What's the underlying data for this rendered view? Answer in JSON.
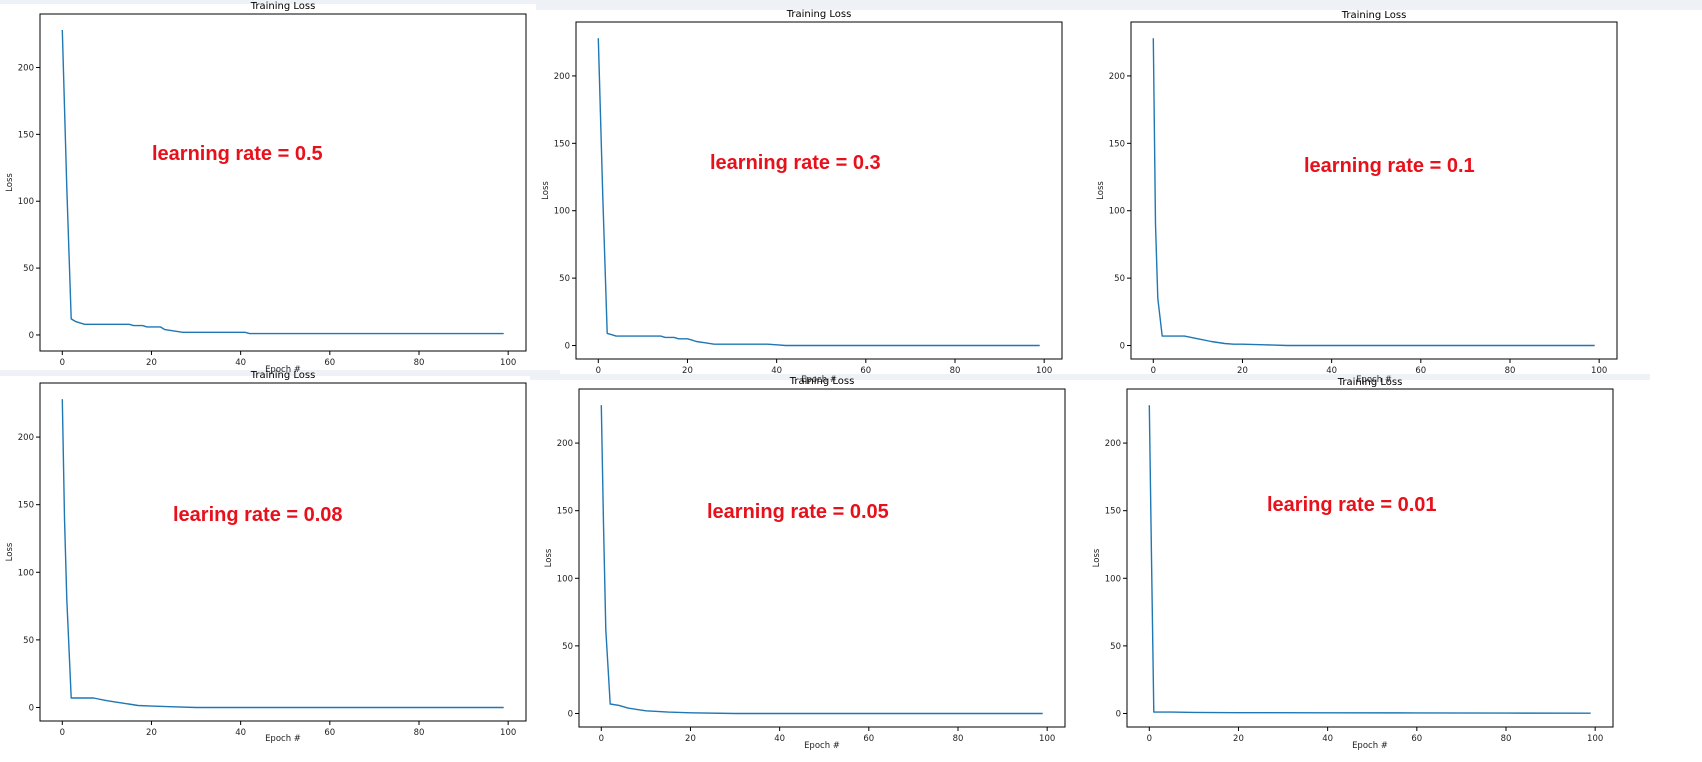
{
  "colors": {
    "line": "#1f77b4",
    "annotation": "#e8101a",
    "frame": "#000000",
    "strip": "#eef1f6"
  },
  "chart_data": [
    {
      "type": "line",
      "title": "Training Loss",
      "xlabel": "Epoch #",
      "ylabel": "Loss",
      "annotation": "learning rate = 0.5",
      "xlim": [
        -5,
        104
      ],
      "ylim": [
        -12,
        240
      ],
      "xticks": [
        0,
        20,
        40,
        60,
        80,
        100
      ],
      "yticks": [
        0,
        50,
        100,
        150,
        200
      ],
      "x": [
        0,
        1,
        2,
        3,
        4,
        5,
        8,
        12,
        15,
        16,
        18,
        19,
        22,
        23,
        25,
        27,
        30,
        35,
        41,
        42,
        45,
        50,
        60,
        70,
        80,
        90,
        99
      ],
      "y": [
        228,
        110,
        12,
        10,
        9,
        8,
        8,
        8,
        8,
        7,
        7,
        6,
        6,
        4,
        3,
        2,
        2,
        2,
        2,
        1,
        1,
        1,
        1,
        1,
        1,
        1,
        1
      ]
    },
    {
      "type": "line",
      "title": "Training Loss",
      "xlabel": "Epoch #",
      "ylabel": "Loss",
      "annotation": "learning rate = 0.3",
      "xlim": [
        -5,
        104
      ],
      "ylim": [
        -10,
        240
      ],
      "xticks": [
        0,
        20,
        40,
        60,
        80,
        100
      ],
      "yticks": [
        0,
        50,
        100,
        150,
        200
      ],
      "x": [
        0,
        1,
        2,
        3,
        4,
        6,
        10,
        14,
        15,
        17,
        18,
        20,
        21,
        22,
        24,
        26,
        30,
        35,
        38,
        40,
        42,
        45,
        50,
        60,
        70,
        80,
        90,
        99
      ],
      "y": [
        228,
        110,
        9,
        8,
        7,
        7,
        7,
        7,
        6,
        6,
        5,
        5,
        4,
        3,
        2,
        1,
        1,
        1,
        1,
        0.5,
        0,
        0,
        0,
        0,
        0,
        0,
        0,
        0
      ]
    },
    {
      "type": "line",
      "title": "Training Loss",
      "xlabel": "Epoch #",
      "ylabel": "Loss",
      "annotation": "learning rate = 0.1",
      "xlim": [
        -5,
        104
      ],
      "ylim": [
        -10,
        240
      ],
      "xticks": [
        0,
        20,
        40,
        60,
        80,
        100
      ],
      "yticks": [
        0,
        50,
        100,
        150,
        200
      ],
      "x": [
        0,
        0.5,
        1,
        2,
        3,
        5,
        7,
        10,
        13,
        16,
        18,
        20,
        25,
        30,
        40,
        50,
        60,
        70,
        80,
        90,
        99
      ],
      "y": [
        228,
        90,
        35,
        7,
        7,
        7,
        7,
        5,
        3,
        1.5,
        1,
        1,
        0.5,
        0,
        0,
        0,
        0,
        0,
        0,
        0,
        0
      ]
    },
    {
      "type": "line",
      "title": "Training Loss",
      "xlabel": "Epoch #",
      "ylabel": "Loss",
      "annotation": "learing rate = 0.08",
      "xlim": [
        -5,
        104
      ],
      "ylim": [
        -10,
        240
      ],
      "xticks": [
        0,
        20,
        40,
        60,
        80,
        100
      ],
      "yticks": [
        0,
        50,
        100,
        150,
        200
      ],
      "x": [
        0,
        0.5,
        1,
        2,
        3,
        5,
        7,
        10,
        14,
        17,
        20,
        25,
        30,
        40,
        50,
        60,
        70,
        80,
        90,
        99
      ],
      "y": [
        228,
        140,
        80,
        7,
        7,
        7,
        7,
        5,
        3,
        1.5,
        1,
        0.5,
        0,
        0,
        0,
        0,
        0,
        0,
        0,
        0
      ]
    },
    {
      "type": "line",
      "title": "Training Loss",
      "xlabel": "Epoch #",
      "ylabel": "Loss",
      "annotation": "learning rate = 0.05",
      "xlim": [
        -5,
        104
      ],
      "ylim": [
        -10,
        240
      ],
      "xticks": [
        0,
        20,
        40,
        60,
        80,
        100
      ],
      "yticks": [
        0,
        50,
        100,
        150,
        200
      ],
      "x": [
        0,
        0.5,
        1,
        2,
        4,
        6,
        10,
        15,
        20,
        30,
        40,
        50,
        60,
        70,
        80,
        90,
        99
      ],
      "y": [
        228,
        140,
        62,
        7,
        6,
        4,
        2,
        1,
        0.5,
        0,
        0,
        0,
        0,
        0,
        0,
        0,
        0
      ]
    },
    {
      "type": "line",
      "title": "Training Loss",
      "xlabel": "Epoch #",
      "ylabel": "Loss",
      "annotation": "learing rate = 0.01",
      "xlim": [
        -5,
        104
      ],
      "ylim": [
        -10,
        240
      ],
      "xticks": [
        0,
        20,
        40,
        60,
        80,
        100
      ],
      "yticks": [
        0,
        50,
        100,
        150,
        200
      ],
      "x": [
        0,
        0.5,
        1,
        5,
        10,
        20,
        40,
        60,
        80,
        99
      ],
      "y": [
        228,
        115,
        1,
        1,
        0.8,
        0.6,
        0.5,
        0.4,
        0.3,
        0.2
      ]
    }
  ]
}
